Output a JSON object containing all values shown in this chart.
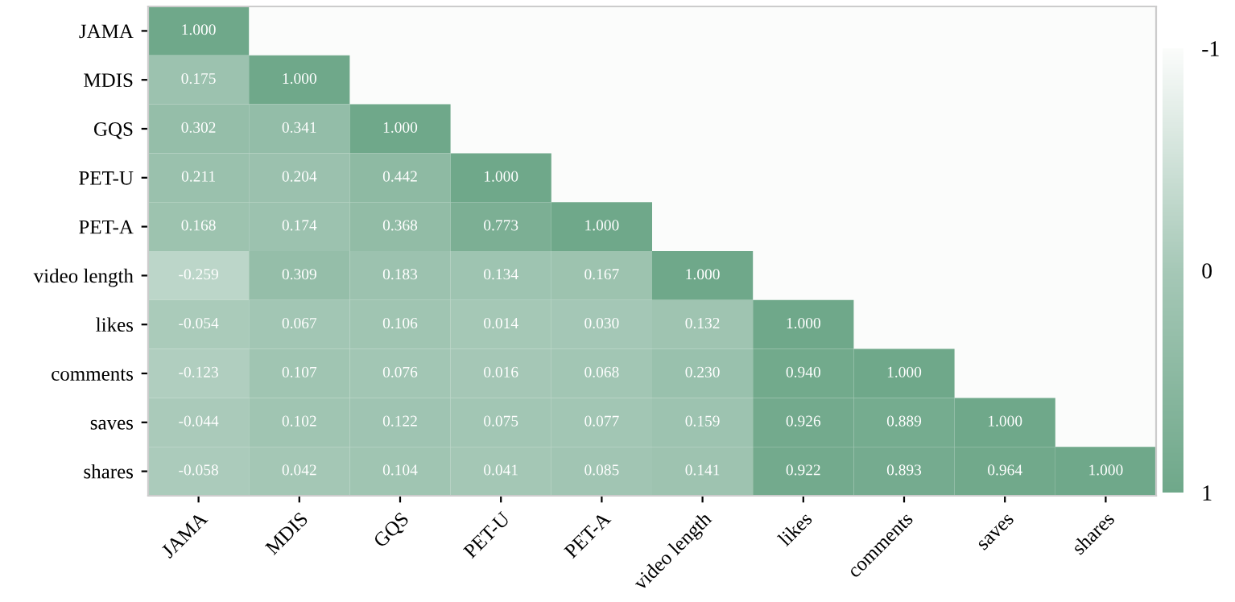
{
  "chart_data": {
    "type": "heatmap",
    "categories": [
      "JAMA",
      "MDIS",
      "GQS",
      "PET-U",
      "PET-A",
      "video length",
      "likes",
      "comments",
      "saves",
      "shares"
    ],
    "y_categories": [
      "JAMA",
      "MDIS",
      "GQS",
      "PET-U",
      "PET-A",
      "video length",
      "likes",
      "comments",
      "saves",
      "shares"
    ],
    "cells": [
      [
        1.0,
        null,
        null,
        null,
        null,
        null,
        null,
        null,
        null,
        null
      ],
      [
        0.175,
        1.0,
        null,
        null,
        null,
        null,
        null,
        null,
        null,
        null
      ],
      [
        0.302,
        0.341,
        1.0,
        null,
        null,
        null,
        null,
        null,
        null,
        null
      ],
      [
        0.211,
        0.204,
        0.442,
        1.0,
        null,
        null,
        null,
        null,
        null,
        null
      ],
      [
        0.168,
        0.174,
        0.368,
        0.773,
        1.0,
        null,
        null,
        null,
        null,
        null
      ],
      [
        -0.259,
        0.309,
        0.183,
        0.134,
        0.167,
        1.0,
        null,
        null,
        null,
        null
      ],
      [
        -0.054,
        0.067,
        0.106,
        0.014,
        0.03,
        0.132,
        1.0,
        null,
        null,
        null
      ],
      [
        -0.123,
        0.107,
        0.076,
        0.016,
        0.068,
        0.23,
        0.94,
        1.0,
        null,
        null
      ],
      [
        -0.044,
        0.102,
        0.122,
        0.075,
        0.077,
        0.159,
        0.926,
        0.889,
        1.0,
        null
      ],
      [
        -0.058,
        0.042,
        0.104,
        0.041,
        0.085,
        0.141,
        0.922,
        0.893,
        0.964,
        1.0
      ]
    ],
    "cell_labels": [
      [
        "1.000",
        null,
        null,
        null,
        null,
        null,
        null,
        null,
        null,
        null
      ],
      [
        "0.175",
        "1.000",
        null,
        null,
        null,
        null,
        null,
        null,
        null,
        null
      ],
      [
        "0.302",
        "0.341",
        "1.000",
        null,
        null,
        null,
        null,
        null,
        null,
        null
      ],
      [
        "0.211",
        "0.204",
        "0.442",
        "1.000",
        null,
        null,
        null,
        null,
        null,
        null
      ],
      [
        "0.168",
        "0.174",
        "0.368",
        "0.773",
        "1.000",
        null,
        null,
        null,
        null,
        null
      ],
      [
        "-0.259",
        "0.309",
        "0.183",
        "0.134",
        "0.167",
        "1.000",
        null,
        null,
        null,
        null
      ],
      [
        "-0.054",
        "0.067",
        "0.106",
        "0.014",
        "0.030",
        "0.132",
        "1.000",
        null,
        null,
        null
      ],
      [
        "-0.123",
        "0.107",
        "0.076",
        "0.016",
        "0.068",
        "0.230",
        "0.940",
        "1.000",
        null,
        null
      ],
      [
        "-0.044",
        "0.102",
        "0.122",
        "0.075",
        "0.077",
        "0.159",
        "0.926",
        "0.889",
        "1.000",
        null
      ],
      [
        "-0.058",
        "0.042",
        "0.104",
        "0.041",
        "0.085",
        "0.141",
        "0.922",
        "0.893",
        "0.964",
        "1.000"
      ]
    ],
    "clim": [
      -1,
      1
    ],
    "cticks": [
      -1,
      0,
      1
    ]
  }
}
